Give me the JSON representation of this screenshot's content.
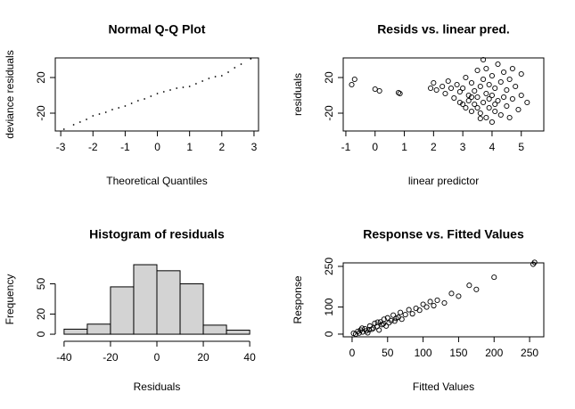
{
  "chart_data": [
    {
      "type": "scatter",
      "title": "Normal Q-Q Plot",
      "x_label": "Theoretical Quantiles",
      "y_label": "deviance residuals",
      "marker": "point",
      "color": "#000000",
      "x": [
        -2.9,
        -2.6,
        -2.4,
        -2.2,
        -2.0,
        -1.8,
        -1.6,
        -1.4,
        -1.2,
        -1.0,
        -0.8,
        -0.6,
        -0.4,
        -0.2,
        0,
        0.2,
        0.4,
        0.6,
        0.8,
        1.0,
        1.2,
        1.4,
        1.6,
        1.8,
        2.0,
        2.2,
        2.4,
        2.6,
        2.9
      ],
      "values": [
        -38,
        -33,
        -30,
        -27,
        -23,
        -21,
        -19,
        -16,
        -14,
        -12,
        -9,
        -6,
        -4,
        -1,
        2,
        4,
        6,
        8,
        9,
        10,
        13,
        16,
        19,
        21,
        22,
        26,
        31,
        35,
        41
      ],
      "xlim": [
        -3.17,
        3.14
      ],
      "ylim": [
        -40,
        42
      ],
      "xticks": [
        -3,
        -2,
        -1,
        0,
        1,
        2,
        3
      ],
      "yticks": [
        -20,
        20
      ]
    },
    {
      "type": "scatter",
      "title": "Resids vs. linear pred.",
      "x_label": "linear predictor",
      "y_label": "residuals",
      "marker": "circle",
      "color": "#000000",
      "x": [
        -0.8,
        -0.7,
        0.0,
        0.15,
        0.8,
        0.85,
        1.9,
        2.0,
        2.1,
        2.3,
        2.4,
        2.5,
        2.6,
        2.7,
        2.8,
        2.9,
        3.0,
        3.0,
        3.1,
        3.1,
        3.2,
        3.2,
        3.3,
        3.3,
        3.4,
        3.4,
        3.5,
        3.5,
        3.6,
        3.6,
        3.7,
        3.7,
        3.7,
        3.8,
        3.8,
        3.8,
        3.9,
        3.9,
        4.0,
        4.0,
        4.0,
        4.1,
        4.1,
        4.2,
        4.2,
        4.3,
        4.3,
        4.4,
        4.4,
        4.5,
        4.5,
        4.6,
        4.6,
        4.7,
        4.8,
        4.9,
        5.0,
        5.0,
        5.2,
        3.5,
        3.9,
        4.1,
        3.3,
        4.7,
        3.6,
        2.9
      ],
      "values": [
        12,
        18,
        7,
        5,
        3,
        2,
        8,
        14,
        6,
        10,
        2,
        16,
        8,
        -3,
        12,
        4,
        -10,
        8,
        -14,
        20,
        0,
        -6,
        14,
        -18,
        5,
        -10,
        28,
        -2,
        10,
        -20,
        40,
        -8,
        18,
        2,
        -25,
        30,
        -14,
        12,
        -30,
        22,
        0,
        -18,
        8,
        35,
        -6,
        -22,
        15,
        -2,
        26,
        -12,
        6,
        18,
        -25,
        -4,
        10,
        -16,
        24,
        0,
        -8,
        -14,
        -4,
        -10,
        -2,
        30,
        -26,
        -8
      ],
      "xlim": [
        -1.09,
        5.77
      ],
      "ylim": [
        -40,
        42
      ],
      "xticks": [
        -1,
        0,
        1,
        2,
        3,
        4,
        5
      ],
      "yticks": [
        -20,
        20
      ]
    },
    {
      "type": "histogram",
      "title": "Histogram of residuals",
      "x_label": "Residuals",
      "y_label": "Frequency",
      "color": "#d3d3d3",
      "bins": [
        -40,
        -30,
        -20,
        -10,
        0,
        10,
        20,
        30,
        40
      ],
      "values": [
        5,
        10,
        47,
        69,
        63,
        50,
        9,
        4
      ],
      "xlim": [
        -43.8,
        43.8
      ],
      "ylim": [
        -2.6,
        71.7
      ],
      "xticks": [
        -40,
        -20,
        0,
        20,
        40
      ],
      "yticks": [
        0,
        20,
        50
      ]
    },
    {
      "type": "scatter",
      "title": "Response vs. Fitted Values",
      "x_label": "Fitted Values",
      "y_label": "Response",
      "marker": "circle",
      "color": "#000000",
      "x": [
        2,
        5,
        8,
        10,
        12,
        15,
        18,
        20,
        22,
        25,
        28,
        30,
        32,
        35,
        38,
        40,
        42,
        45,
        48,
        50,
        52,
        55,
        58,
        60,
        65,
        68,
        70,
        75,
        80,
        85,
        90,
        95,
        100,
        105,
        110,
        115,
        120,
        130,
        140,
        150,
        165,
        175,
        200,
        255,
        257,
        14,
        24,
        36,
        44,
        62
      ],
      "values": [
        3,
        0,
        10,
        4,
        15,
        8,
        20,
        12,
        5,
        30,
        18,
        22,
        40,
        28,
        15,
        45,
        35,
        55,
        30,
        60,
        42,
        50,
        70,
        48,
        62,
        80,
        55,
        72,
        90,
        75,
        95,
        88,
        110,
        100,
        120,
        105,
        125,
        115,
        150,
        140,
        180,
        165,
        210,
        258,
        265,
        22,
        16,
        44,
        38,
        58
      ],
      "xlim": [
        -12.5,
        270
      ],
      "ylim": [
        -10,
        263
      ],
      "xticks": [
        0,
        50,
        100,
        150,
        200,
        250
      ],
      "yticks": [
        0,
        100,
        250
      ]
    }
  ]
}
